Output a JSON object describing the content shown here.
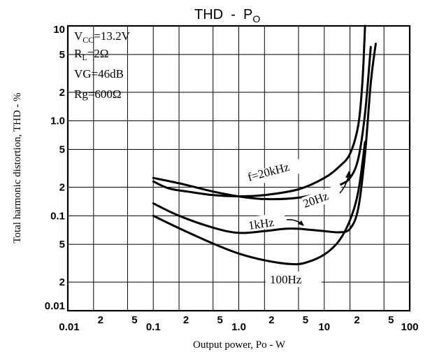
{
  "chart_data": {
    "type": "line",
    "title": "THD  -  P",
    "title_sub": "O",
    "xlabel": "Output power, Po - W",
    "ylabel": "Total harmonic distortion, THD - %",
    "xscale": "log",
    "yscale": "log",
    "xlim": [
      0.01,
      100
    ],
    "ylim": [
      0.01,
      10
    ],
    "grid": true,
    "x_ticks": [
      {
        "v": 0.01,
        "t": "0.01"
      },
      {
        "v": 0.02,
        "t": "2"
      },
      {
        "v": 0.05,
        "t": "5"
      },
      {
        "v": 0.1,
        "t": "0.1"
      },
      {
        "v": 0.2,
        "t": "2"
      },
      {
        "v": 0.5,
        "t": "5"
      },
      {
        "v": 1,
        "t": "1.0"
      },
      {
        "v": 2,
        "t": "2"
      },
      {
        "v": 5,
        "t": "5"
      },
      {
        "v": 10,
        "t": "10"
      },
      {
        "v": 20,
        "t": "2"
      },
      {
        "v": 50,
        "t": "5"
      },
      {
        "v": 100,
        "t": "100"
      }
    ],
    "y_ticks": [
      {
        "v": 10,
        "t": "10"
      },
      {
        "v": 5,
        "t": "5"
      },
      {
        "v": 2,
        "t": "2"
      },
      {
        "v": 1,
        "t": "1.0"
      },
      {
        "v": 0.5,
        "t": "5"
      },
      {
        "v": 0.2,
        "t": "2"
      },
      {
        "v": 0.1,
        "t": "0.1"
      },
      {
        "v": 0.05,
        "t": "5"
      },
      {
        "v": 0.02,
        "t": "2"
      },
      {
        "v": 0.01,
        "t": "0.01"
      }
    ],
    "conditions": [
      {
        "main": "V",
        "sub": "CC",
        "rest": "=13.2V"
      },
      {
        "main": "R",
        "sub": "L",
        "rest": "=2Ω"
      },
      {
        "main": "VG=46dB",
        "sub": "",
        "rest": ""
      },
      {
        "main": "Rg=600Ω",
        "sub": "",
        "rest": ""
      }
    ],
    "series": [
      {
        "name": "f=20kHz",
        "x": [
          0.1,
          0.15,
          0.25,
          0.5,
          1,
          2,
          5,
          10,
          15,
          20,
          25,
          28,
          30
        ],
        "y": [
          0.23,
          0.195,
          0.18,
          0.165,
          0.16,
          0.165,
          0.19,
          0.25,
          0.33,
          0.45,
          0.9,
          2.6,
          10
        ]
      },
      {
        "name": "20Hz",
        "x": [
          0.1,
          0.2,
          0.5,
          1,
          2,
          5,
          10,
          15,
          20,
          25,
          30,
          35
        ],
        "y": [
          0.25,
          0.22,
          0.18,
          0.16,
          0.15,
          0.155,
          0.18,
          0.21,
          0.25,
          0.4,
          1.2,
          6
        ]
      },
      {
        "name": "1kHz",
        "x": [
          0.1,
          0.2,
          0.5,
          1,
          2,
          3.5,
          5,
          7,
          10,
          15,
          20,
          25,
          30,
          35,
          40
        ],
        "y": [
          0.135,
          0.1,
          0.075,
          0.066,
          0.069,
          0.073,
          0.073,
          0.071,
          0.069,
          0.067,
          0.073,
          0.12,
          0.45,
          2.5,
          6.5
        ]
      },
      {
        "name": "100Hz",
        "x": [
          0.1,
          0.2,
          0.5,
          1,
          2,
          4,
          6,
          10,
          15,
          20,
          25,
          30
        ],
        "y": [
          0.1,
          0.074,
          0.051,
          0.04,
          0.034,
          0.031,
          0.032,
          0.039,
          0.055,
          0.09,
          0.18,
          0.6
        ]
      }
    ],
    "annotations": [
      "f=20kHz",
      "20Hz",
      "1kHz",
      "100Hz"
    ]
  }
}
